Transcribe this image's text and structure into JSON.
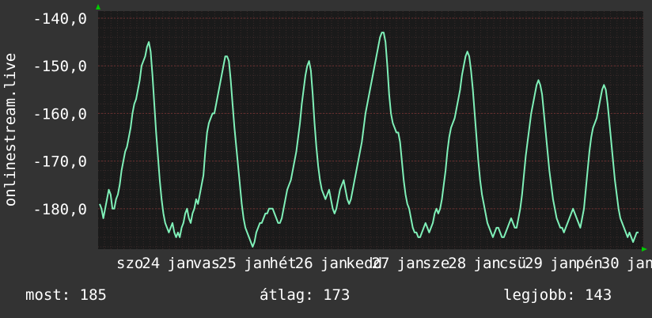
{
  "colors": {
    "background": "#333333",
    "plot_background": "#1a1a1a",
    "grid_major": "#6a3030",
    "grid_minor": "#3a2a2a",
    "line": "#7ff0b8",
    "text": "#ffffff",
    "axis_arrow": "#00cc00"
  },
  "chart_data": {
    "type": "line",
    "ylabel": "onlinestream.live",
    "ylim": [
      -188.5,
      -138.5
    ],
    "y_ticks": [
      -140,
      -150,
      -160,
      -170,
      -180
    ],
    "y_tick_labels": [
      "-140,0",
      "-150,0",
      "-160,0",
      "-170,0",
      "-180,0"
    ],
    "x_tick_labels": [
      "szo",
      "24",
      "jan",
      "vas",
      "25",
      "jan",
      "hét",
      "26",
      "jan",
      "kedd",
      "27",
      "jan",
      "sze",
      "28",
      "jan",
      "csü",
      "29",
      "jan",
      "pén",
      "30",
      "jan"
    ],
    "grid": true,
    "series": [
      {
        "values": [
          -179,
          -180,
          -182,
          -180,
          -178,
          -176,
          -177,
          -180,
          -180,
          -178,
          -177,
          -175,
          -172,
          -170,
          -168,
          -167,
          -165,
          -163,
          -160,
          -158,
          -157,
          -155,
          -153,
          -150,
          -149,
          -148,
          -146,
          -145,
          -147,
          -152,
          -158,
          -164,
          -169,
          -174,
          -178,
          -181,
          -183,
          -184,
          -185,
          -184,
          -183,
          -185,
          -186,
          -185,
          -186,
          -184,
          -183,
          -181,
          -180,
          -182,
          -183,
          -181,
          -180,
          -178,
          -179,
          -177,
          -175,
          -173,
          -168,
          -164,
          -162,
          -161,
          -160,
          -160,
          -158,
          -156,
          -154,
          -152,
          -150,
          -148,
          -148,
          -149,
          -153,
          -158,
          -163,
          -167,
          -171,
          -175,
          -179,
          -182,
          -184,
          -185,
          -186,
          -187,
          -188,
          -187,
          -185,
          -184,
          -183,
          -183,
          -182,
          -181,
          -181,
          -180,
          -180,
          -180,
          -181,
          -182,
          -183,
          -183,
          -182,
          -180,
          -178,
          -176,
          -175,
          -174,
          -172,
          -170,
          -168,
          -165,
          -162,
          -158,
          -155,
          -152,
          -150,
          -149,
          -151,
          -156,
          -162,
          -167,
          -171,
          -174,
          -176,
          -177,
          -178,
          -177,
          -176,
          -178,
          -180,
          -181,
          -180,
          -178,
          -176,
          -175,
          -174,
          -176,
          -178,
          -179,
          -178,
          -176,
          -174,
          -172,
          -170,
          -168,
          -166,
          -163,
          -160,
          -158,
          -156,
          -154,
          -152,
          -150,
          -148,
          -146,
          -144,
          -143,
          -143,
          -145,
          -150,
          -156,
          -160,
          -162,
          -163,
          -164,
          -164,
          -166,
          -170,
          -174,
          -177,
          -179,
          -180,
          -182,
          -184,
          -185,
          -185,
          -186,
          -186,
          -185,
          -184,
          -183,
          -184,
          -185,
          -184,
          -183,
          -181,
          -180,
          -181,
          -180,
          -178,
          -175,
          -172,
          -168,
          -165,
          -163,
          -162,
          -161,
          -159,
          -157,
          -155,
          -152,
          -150,
          -148,
          -147,
          -148,
          -151,
          -155,
          -160,
          -165,
          -170,
          -174,
          -177,
          -179,
          -181,
          -183,
          -184,
          -185,
          -186,
          -185,
          -184,
          -184,
          -185,
          -186,
          -186,
          -185,
          -184,
          -183,
          -182,
          -183,
          -184,
          -184,
          -182,
          -180,
          -177,
          -173,
          -169,
          -166,
          -163,
          -160,
          -158,
          -156,
          -154,
          -153,
          -154,
          -156,
          -160,
          -164,
          -168,
          -172,
          -175,
          -178,
          -180,
          -182,
          -183,
          -184,
          -184,
          -185,
          -184,
          -183,
          -182,
          -181,
          -180,
          -181,
          -182,
          -183,
          -184,
          -182,
          -180,
          -176,
          -172,
          -168,
          -165,
          -163,
          -162,
          -161,
          -159,
          -157,
          -155,
          -154,
          -155,
          -158,
          -162,
          -166,
          -170,
          -174,
          -177,
          -180,
          -182,
          -183,
          -184,
          -185,
          -186,
          -185,
          -186,
          -187,
          -186,
          -185,
          -185
        ]
      }
    ]
  },
  "stats": {
    "now": "most: 185",
    "avg": "átlag: 173",
    "best": "legjobb: 143"
  }
}
